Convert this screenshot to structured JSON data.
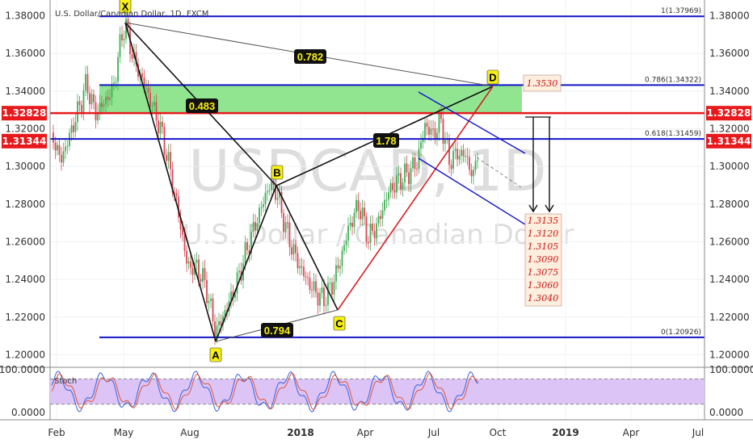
{
  "header": {
    "title": "U.S. Dollar/Canadian Dollar, 1D, FXCM"
  },
  "watermark": {
    "symbol": "USDCAD, 1D",
    "name": "U.S. Dollar / Canadian Dollar"
  },
  "chart_data": {
    "type": "line",
    "price_axis": {
      "ylim": [
        1.1955,
        1.3875
      ],
      "ticks": [
        "1.38000",
        "1.36000",
        "1.34000",
        "1.32000",
        "1.30000",
        "1.28000",
        "1.26000",
        "1.24000",
        "1.22000",
        "1.20000"
      ]
    },
    "time_axis": {
      "labels": [
        "Feb",
        "May",
        "Aug",
        "2018",
        "Apr",
        "Jul",
        "Oct",
        "2019",
        "Apr",
        "Jul"
      ],
      "bold_labels": [
        "2018",
        "2019"
      ]
    },
    "price_badges": [
      {
        "text": "1.32828",
        "value": 1.32828,
        "color": "#e8191c"
      },
      {
        "text": "1.31344",
        "value": 1.31344,
        "color": "#e8191c"
      }
    ],
    "fib_levels": [
      {
        "label": "1(1.37969)",
        "value": 1.37969
      },
      {
        "label": "0.786(1.34322)",
        "value": 1.34322
      },
      {
        "label": "0.618(1.31459)",
        "value": 1.31459
      },
      {
        "label": "0(1.20926)",
        "value": 1.20926
      }
    ],
    "pattern_points": [
      {
        "name": "X",
        "value": 1.37969
      },
      {
        "name": "A",
        "value": 1.20926
      },
      {
        "name": "B",
        "value": 1.2915
      },
      {
        "name": "C",
        "value": 1.2265
      },
      {
        "name": "D",
        "value": 1.342
      }
    ],
    "ratios": [
      "0.782",
      "0.483",
      "1.78",
      "0.794"
    ],
    "d_target": "1.3530",
    "targets": [
      "1.3135",
      "1.3120",
      "1.3105",
      "1.3090",
      "1.3075",
      "1.3060",
      "1.3040"
    ],
    "stoch": {
      "label": "Stoch",
      "ticks": [
        "100.0000",
        "0.0000"
      ],
      "levels": [
        80,
        20
      ],
      "ylim": [
        0,
        100
      ]
    },
    "colors": {
      "fib_line": "#1414c8",
      "resistance": "#e8191c",
      "zone": "#7ee07e",
      "up_candle": "#3fae55",
      "down_candle": "#d84a55",
      "stoch_bg": "#dcc4f7",
      "target_box": "#fdeedd"
    }
  }
}
